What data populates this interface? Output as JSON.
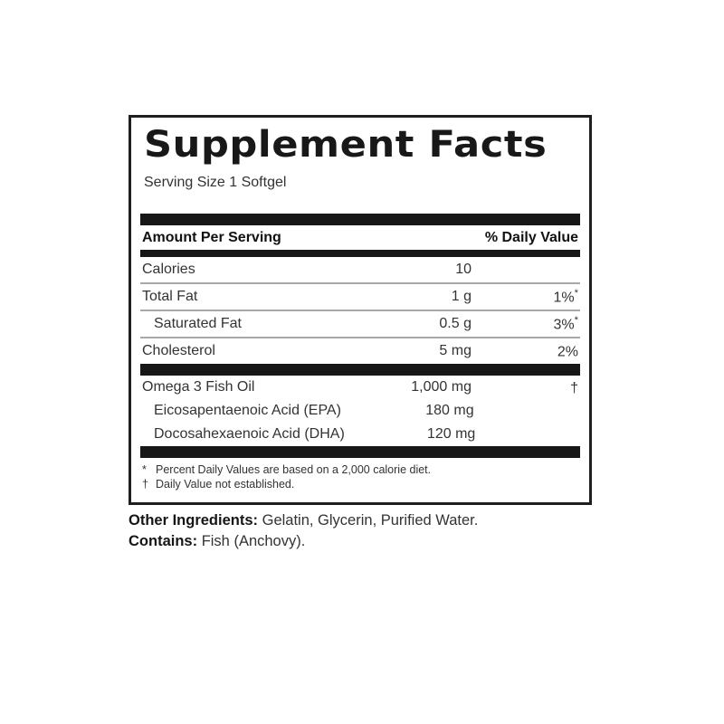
{
  "label": {
    "title": "Supplement Facts",
    "serving_size": "Serving Size 1 Softgel",
    "header": {
      "amount_col": "Amount Per Serving",
      "dv_col": "% Daily Value"
    },
    "rows": [
      {
        "name": "Calories",
        "amount": "10",
        "dv": "",
        "dv_mark": ""
      },
      {
        "name": "Total Fat",
        "amount": "1 g",
        "dv": "1%",
        "dv_mark": "*"
      },
      {
        "name": "Saturated Fat",
        "amount": "0.5 g",
        "dv": "3%",
        "dv_mark": "*"
      },
      {
        "name": "Cholesterol",
        "amount": "5 mg",
        "dv": "2%",
        "dv_mark": ""
      },
      {
        "name": "Omega 3 Fish Oil",
        "amount": "1,000 mg",
        "dv": "†",
        "dv_mark": ""
      },
      {
        "name": "Eicosapentaenoic Acid (EPA)",
        "amount": "180 mg",
        "dv": "",
        "dv_mark": ""
      },
      {
        "name": "Docosahexaenoic Acid (DHA)",
        "amount": "120 mg",
        "dv": "",
        "dv_mark": ""
      }
    ],
    "footnotes": [
      {
        "mark": "*",
        "text": "Percent Daily Values are based on a 2,000 calorie diet."
      },
      {
        "mark": "†",
        "text": "Daily Value not established."
      }
    ]
  },
  "other_ingredients": {
    "label": "Other Ingredients:",
    "text": "Gelatin, Glycerin, Purified Water."
  },
  "contains": {
    "label": "Contains:",
    "text": "Fish (Anchovy)."
  },
  "colors": {
    "bar": "#171717",
    "divider": "#a8a8a8",
    "border": "#1f1f1f",
    "text": "#333333"
  }
}
